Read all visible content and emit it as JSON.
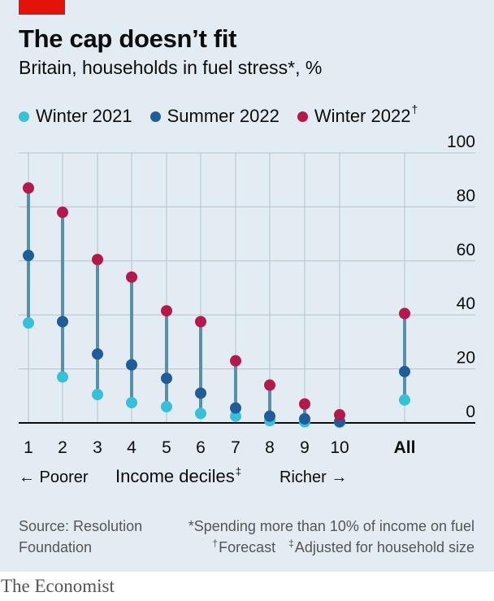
{
  "title": "The cap doesn’t fit",
  "subtitle": "Britain, households in fuel stress*, %",
  "legend": [
    {
      "label": "Winter 2021",
      "sup": "",
      "color": "#36c1d9"
    },
    {
      "label": "Summer 2022",
      "sup": "",
      "color": "#1f5c99"
    },
    {
      "label": "Winter 2022",
      "sup": "†",
      "color": "#b5184a"
    }
  ],
  "chart_data": {
    "type": "dot",
    "categories": [
      "1",
      "2",
      "3",
      "4",
      "5",
      "6",
      "7",
      "8",
      "9",
      "10",
      "All"
    ],
    "series": [
      {
        "name": "Winter 2021",
        "values": [
          37,
          17,
          10.5,
          7.5,
          6,
          3.5,
          2.5,
          0.8,
          0.4,
          0.2,
          8.5
        ]
      },
      {
        "name": "Summer 2022",
        "values": [
          62,
          37.5,
          25.5,
          21.5,
          16.5,
          11,
          5.5,
          2.5,
          1.5,
          0.5,
          19
        ]
      },
      {
        "name": "Winter 2022",
        "values": [
          87,
          78,
          60.5,
          54,
          41.5,
          37.5,
          23,
          14,
          7,
          3,
          40.5
        ]
      }
    ],
    "ylim": [
      0,
      100
    ],
    "yticks": [
      0,
      20,
      40,
      60,
      80,
      100
    ],
    "grid": "horizontal"
  },
  "colors": {
    "stem": "#5a8fa8",
    "grid": "#b3c3cc",
    "axis": "#0c0c0c"
  },
  "axis": {
    "poorer": "← Poorer",
    "center": "Income deciles",
    "center_sup": "‡",
    "richer": "Richer →"
  },
  "footer": {
    "source_line1": "Source: Resolution",
    "source_line2": "Foundation",
    "note1": "*Spending more than 10% of income on fuel",
    "note2_sup": "†",
    "note2": "Forecast",
    "note3_sup": "‡",
    "note3": "Adjusted for household size"
  },
  "brand": "The Economist"
}
